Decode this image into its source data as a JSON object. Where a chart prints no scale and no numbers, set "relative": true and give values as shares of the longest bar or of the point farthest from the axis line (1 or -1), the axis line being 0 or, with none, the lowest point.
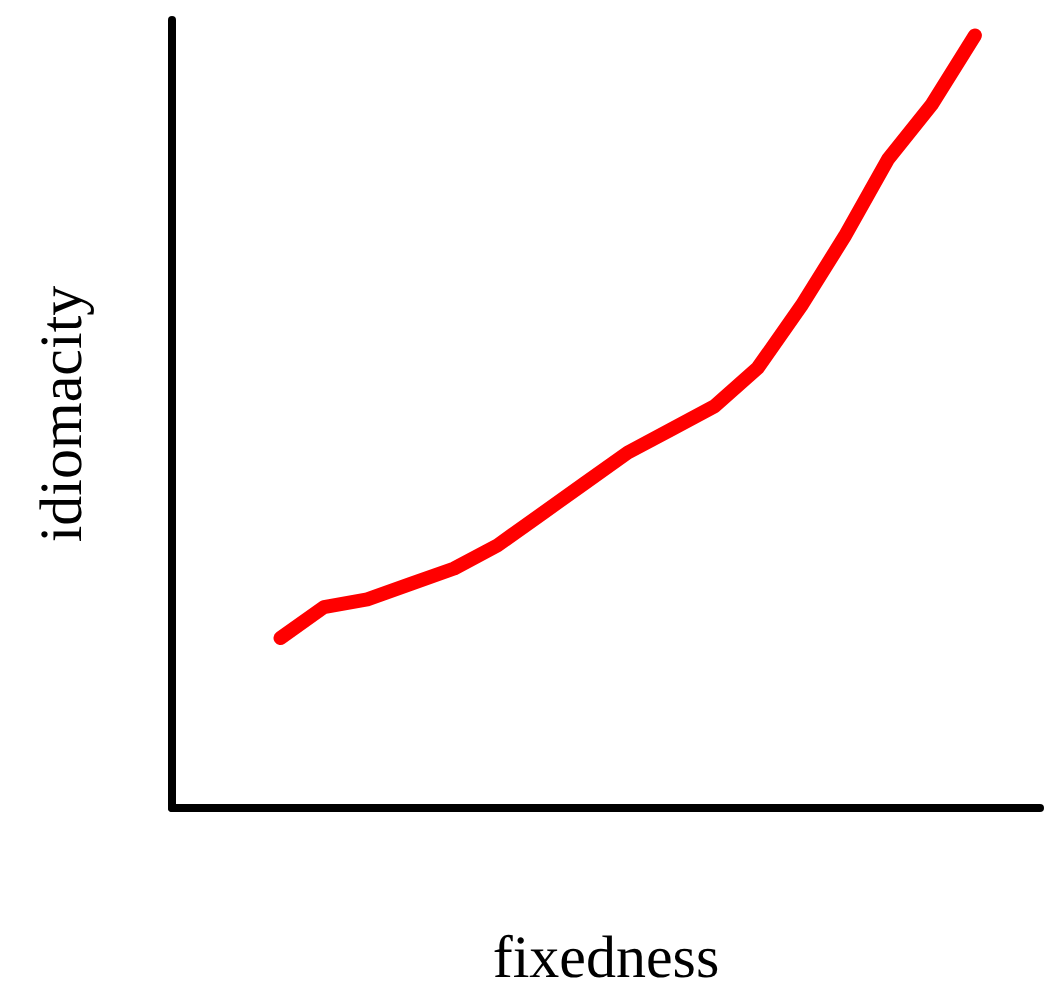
{
  "chart_data": {
    "type": "line",
    "relative": true,
    "xlabel": "fixedness",
    "ylabel": "idiomacity",
    "categories": [
      null,
      null,
      null,
      null,
      null,
      null,
      null,
      null,
      null,
      null,
      null,
      null,
      null,
      null,
      null,
      null,
      null,
      null,
      null,
      null
    ],
    "series": [
      {
        "color": "#ff0000",
        "values": [
          null,
          null,
          0.22,
          0.26,
          0.27,
          0.29,
          0.31,
          0.34,
          0.38,
          0.42,
          0.46,
          0.49,
          0.52,
          0.57,
          0.65,
          0.74,
          0.84,
          0.91,
          1,
          null
        ]
      }
    ]
  }
}
